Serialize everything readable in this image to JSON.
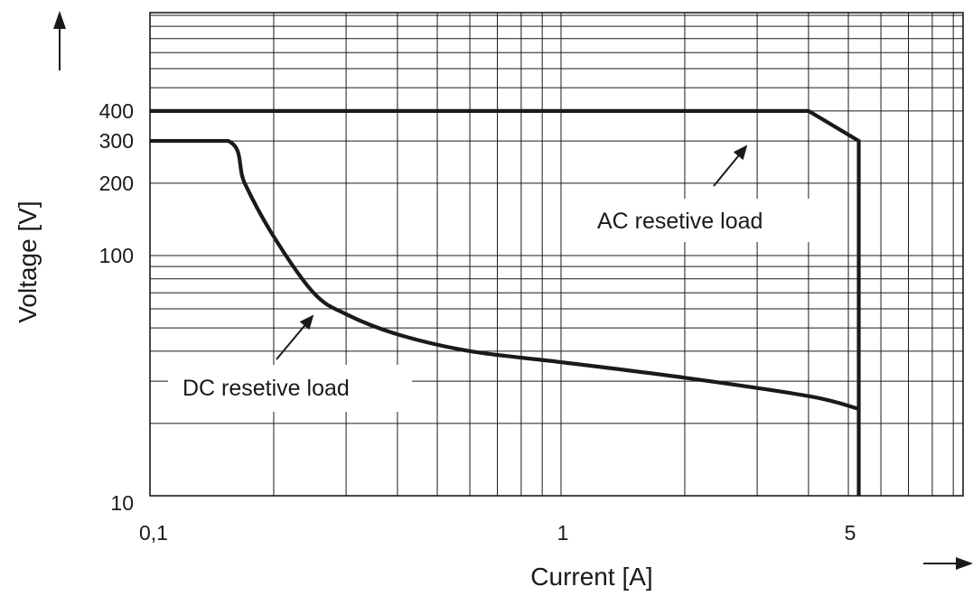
{
  "chart_data": {
    "type": "line",
    "title": "",
    "xlabel": "Current [A]",
    "ylabel": "Voltage [V]",
    "x_scale": "log",
    "y_scale": "log",
    "xlim": [
      0.1,
      9.6
    ],
    "ylim": [
      10,
      1100
    ],
    "grid": true,
    "x_tick_labels": [
      {
        "value": 0.1,
        "label": "0,1"
      },
      {
        "value": 1,
        "label": "1"
      },
      {
        "value": 5,
        "label": "5"
      }
    ],
    "y_tick_labels": [
      {
        "value": 10,
        "label": "10"
      },
      {
        "value": 100,
        "label": "100"
      },
      {
        "value": 200,
        "label": "200"
      },
      {
        "value": 300,
        "label": "300"
      },
      {
        "value": 400,
        "label": "400"
      }
    ],
    "series": [
      {
        "name": "AC resetive load",
        "x": [
          0.1,
          4.0,
          5.3,
          5.3
        ],
        "y": [
          400,
          400,
          300,
          10
        ]
      },
      {
        "name": "DC resetive load",
        "x": [
          0.1,
          0.155,
          0.17,
          0.2,
          0.25,
          0.3,
          0.4,
          0.6,
          1.0,
          2.0,
          4.0,
          5.3
        ],
        "y": [
          300,
          300,
          200,
          120,
          70,
          57,
          47,
          40,
          36,
          31,
          26,
          23
        ]
      }
    ],
    "annotations": [
      {
        "text": "AC resetive load",
        "points_to": {
          "x": 3.2,
          "y": 300
        }
      },
      {
        "text": "DC resetive load",
        "points_to": {
          "x": 0.27,
          "y": 58
        }
      }
    ]
  }
}
